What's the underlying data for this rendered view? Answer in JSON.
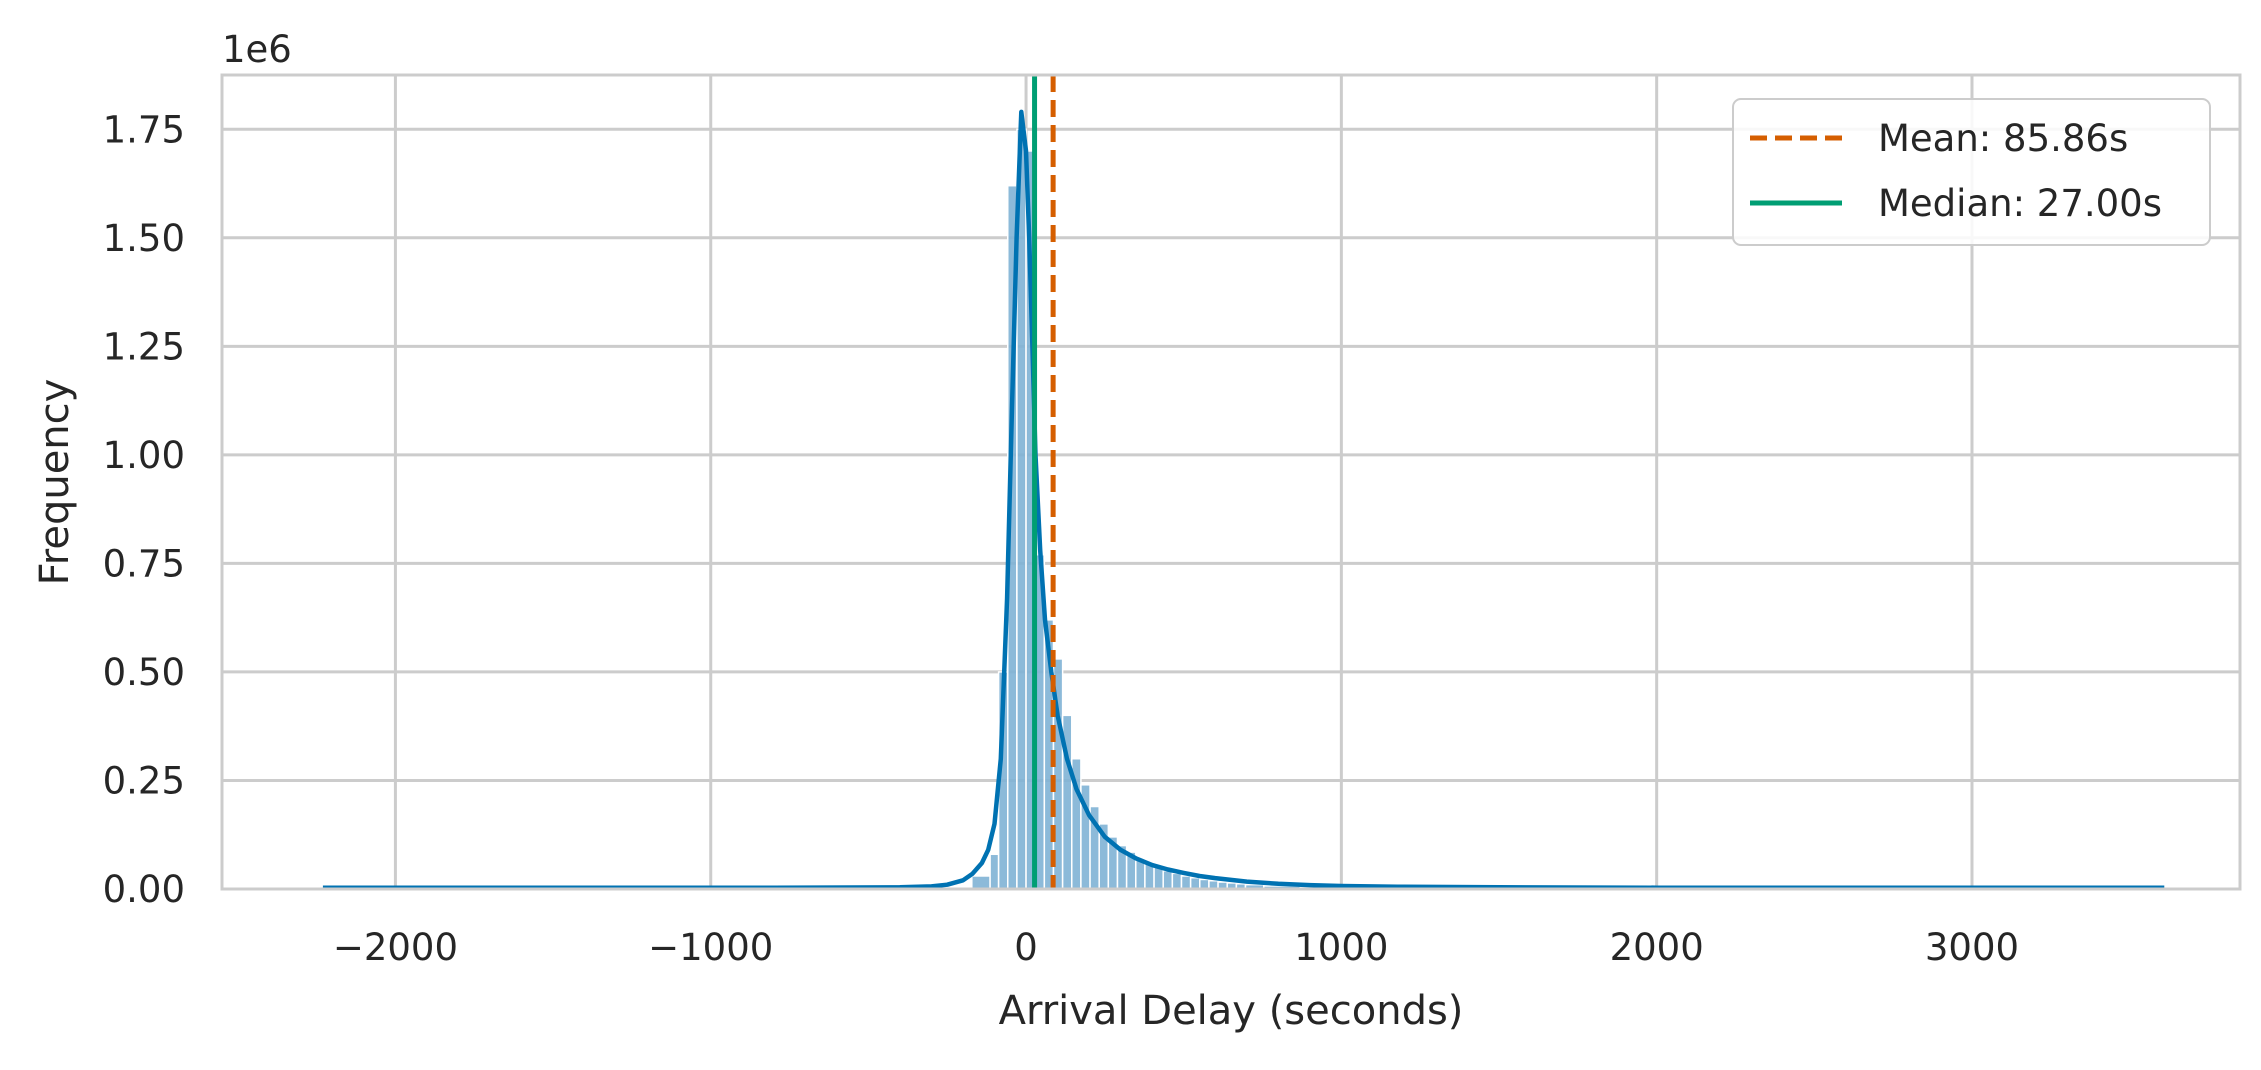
{
  "chart_data": {
    "type": "histogram",
    "title": "",
    "xlabel": "Arrival Delay (seconds)",
    "ylabel": "Frequency",
    "y_offset_label": "1e6",
    "xlim": [
      -2550,
      3850
    ],
    "ylim": [
      0,
      1.875
    ],
    "x_ticks": [
      -2000,
      -1000,
      0,
      1000,
      2000,
      3000
    ],
    "x_tick_labels": [
      "−2000",
      "−1000",
      "0",
      "1000",
      "2000",
      "3000"
    ],
    "y_ticks": [
      0,
      0.25,
      0.5,
      0.75,
      1.0,
      1.25,
      1.5,
      1.75
    ],
    "y_tick_labels": [
      "0.00",
      "0.25",
      "0.50",
      "0.75",
      "1.00",
      "1.25",
      "1.50",
      "1.75"
    ],
    "grid": true,
    "legend_position": "top-right",
    "histogram": {
      "color": "#7fb3d5",
      "bins": [
        {
          "x0": -230,
          "x1": -172,
          "value": 0.005
        },
        {
          "x0": -172,
          "x1": -114,
          "value": 0.03
        },
        {
          "x0": -114,
          "x1": -87,
          "value": 0.08
        },
        {
          "x0": -87,
          "x1": -58,
          "value": 0.5
        },
        {
          "x0": -58,
          "x1": -29,
          "value": 1.62
        },
        {
          "x0": -29,
          "x1": 0,
          "value": 1.75
        },
        {
          "x0": 0,
          "x1": 29,
          "value": 1.7
        },
        {
          "x0": 29,
          "x1": 58,
          "value": 0.77
        },
        {
          "x0": 58,
          "x1": 87,
          "value": 0.62
        },
        {
          "x0": 87,
          "x1": 116,
          "value": 0.53
        },
        {
          "x0": 116,
          "x1": 145,
          "value": 0.4
        },
        {
          "x0": 145,
          "x1": 174,
          "value": 0.3
        },
        {
          "x0": 174,
          "x1": 203,
          "value": 0.24
        },
        {
          "x0": 203,
          "x1": 232,
          "value": 0.19
        },
        {
          "x0": 232,
          "x1": 261,
          "value": 0.15
        },
        {
          "x0": 261,
          "x1": 290,
          "value": 0.12
        },
        {
          "x0": 290,
          "x1": 319,
          "value": 0.1
        },
        {
          "x0": 319,
          "x1": 348,
          "value": 0.085
        },
        {
          "x0": 348,
          "x1": 377,
          "value": 0.07
        },
        {
          "x0": 377,
          "x1": 406,
          "value": 0.06
        },
        {
          "x0": 406,
          "x1": 435,
          "value": 0.05
        },
        {
          "x0": 435,
          "x1": 464,
          "value": 0.042
        },
        {
          "x0": 464,
          "x1": 493,
          "value": 0.036
        },
        {
          "x0": 493,
          "x1": 522,
          "value": 0.03
        },
        {
          "x0": 522,
          "x1": 551,
          "value": 0.026
        },
        {
          "x0": 551,
          "x1": 580,
          "value": 0.022
        },
        {
          "x0": 580,
          "x1": 609,
          "value": 0.019
        },
        {
          "x0": 609,
          "x1": 638,
          "value": 0.016
        },
        {
          "x0": 638,
          "x1": 667,
          "value": 0.014
        },
        {
          "x0": 667,
          "x1": 696,
          "value": 0.012
        },
        {
          "x0": 696,
          "x1": 754,
          "value": 0.01
        },
        {
          "x0": 754,
          "x1": 870,
          "value": 0.007
        },
        {
          "x0": 870,
          "x1": 1100,
          "value": 0.004
        }
      ]
    },
    "kde": {
      "color": "#0072b2",
      "x": [
        -2230,
        -1500,
        -800,
        -400,
        -300,
        -250,
        -200,
        -170,
        -140,
        -120,
        -100,
        -80,
        -60,
        -45,
        -30,
        -15,
        0,
        10,
        20,
        30,
        45,
        60,
        80,
        100,
        130,
        160,
        200,
        250,
        300,
        350,
        400,
        450,
        500,
        550,
        600,
        700,
        800,
        900,
        1000,
        1200,
        1500,
        2000,
        2500,
        3000,
        3610
      ],
      "y": [
        0.003,
        0.003,
        0.003,
        0.004,
        0.006,
        0.01,
        0.02,
        0.035,
        0.06,
        0.09,
        0.15,
        0.3,
        0.67,
        1.1,
        1.5,
        1.79,
        1.7,
        1.5,
        1.25,
        1.0,
        0.78,
        0.62,
        0.5,
        0.4,
        0.3,
        0.23,
        0.17,
        0.12,
        0.09,
        0.07,
        0.055,
        0.045,
        0.037,
        0.03,
        0.025,
        0.017,
        0.012,
        0.009,
        0.007,
        0.005,
        0.004,
        0.003,
        0.003,
        0.003,
        0.003
      ]
    },
    "mean_line": {
      "x": 85.86,
      "color": "#d55e00",
      "style": "dashed",
      "label": "Mean: 85.86s"
    },
    "median_line": {
      "x": 27.0,
      "color": "#009e73",
      "style": "solid",
      "label": "Median: 27.00s"
    }
  }
}
